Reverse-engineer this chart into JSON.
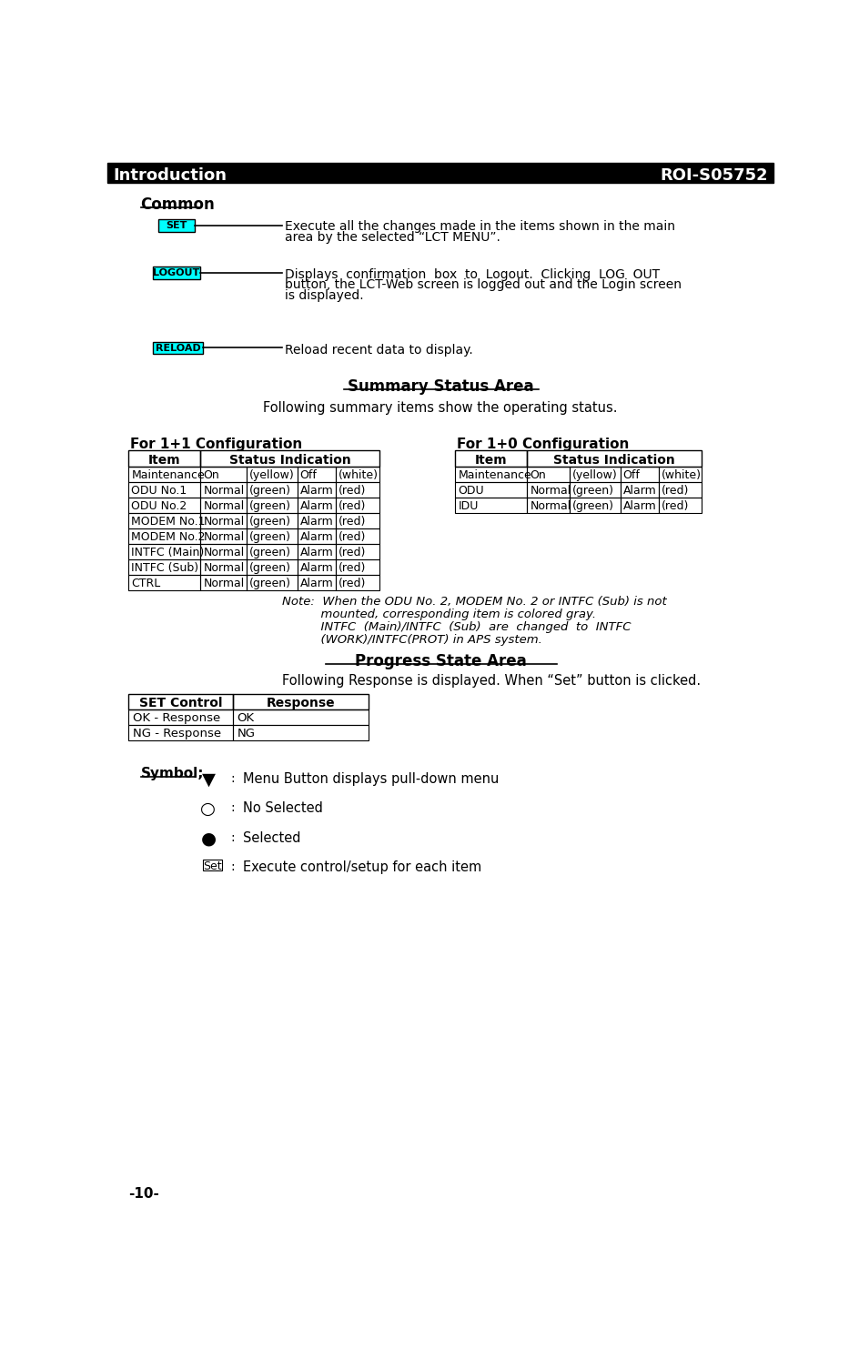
{
  "title_left": "Introduction",
  "title_right": "ROI-S05752",
  "common_label": "Common",
  "set_btn": "SET",
  "logout_btn": "LOGOUT",
  "reload_btn": "RELOAD",
  "set_text_line1": "Execute all the changes made in the items shown in the main",
  "set_text_line2": "area by the selected “LCT MENU”.",
  "logout_text_line1": "Displays  confirmation  box  to  Logout.  Clicking  LOG  OUT",
  "logout_text_line2": "button, the LCT-Web screen is logged out and the Login screen",
  "logout_text_line3": "is displayed.",
  "reload_text": "Reload recent data to display.",
  "summary_title": "Summary Status Area",
  "summary_text": "Following summary items show the operating status.",
  "config1_title": "For 1+1 Configuration",
  "config2_title": "For 1+0 Configuration",
  "table1_rows": [
    [
      "Maintenance",
      "On",
      "(yellow)",
      "Off",
      "(white)"
    ],
    [
      "ODU No.1",
      "Normal",
      "(green)",
      "Alarm",
      "(red)"
    ],
    [
      "ODU No.2",
      "Normal",
      "(green)",
      "Alarm",
      "(red)"
    ],
    [
      "MODEM No.1",
      "Normal",
      "(green)",
      "Alarm",
      "(red)"
    ],
    [
      "MODEM No.2",
      "Normal",
      "(green)",
      "Alarm",
      "(red)"
    ],
    [
      "INTFC (Main)",
      "Normal",
      "(green)",
      "Alarm",
      "(red)"
    ],
    [
      "INTFC (Sub)",
      "Normal",
      "(green)",
      "Alarm",
      "(red)"
    ],
    [
      "CTRL",
      "Normal",
      "(green)",
      "Alarm",
      "(red)"
    ]
  ],
  "table2_rows": [
    [
      "Maintenance",
      "On",
      "(yellow)",
      "Off",
      "(white)"
    ],
    [
      "ODU",
      "Normal",
      "(green)",
      "Alarm",
      "(red)"
    ],
    [
      "IDU",
      "Normal",
      "(green)",
      "Alarm",
      "(red)"
    ]
  ],
  "note_text_lines": [
    "Note:  When the ODU No. 2, MODEM No. 2 or INTFC (Sub) is not",
    "          mounted, corresponding item is colored gray.",
    "          INTFC  (Main)/INTFC  (Sub)  are  changed  to  INTFC",
    "          (WORK)/INTFC(PROT) in APS system."
  ],
  "progress_title": "Progress State Area",
  "progress_text": "Following Response is displayed. When “Set” button is clicked.",
  "set_control_header1": "SET Control",
  "set_control_header2": "Response",
  "set_control_rows": [
    [
      "OK - Response",
      "OK"
    ],
    [
      "NG - Response",
      "NG"
    ]
  ],
  "symbol_label": "Symbol;",
  "symbol_items": [
    [
      "▼",
      "Menu Button displays pull-down menu"
    ],
    [
      "○",
      "No Selected"
    ],
    [
      "●",
      "Selected"
    ],
    [
      "Set",
      "Execute control/setup for each item"
    ]
  ],
  "footer": "-10-",
  "bg_color": "#ffffff",
  "btn_bg": "#00ffff",
  "btn_border": "#000000",
  "header_bg": "#000000",
  "header_fg": "#ffffff"
}
